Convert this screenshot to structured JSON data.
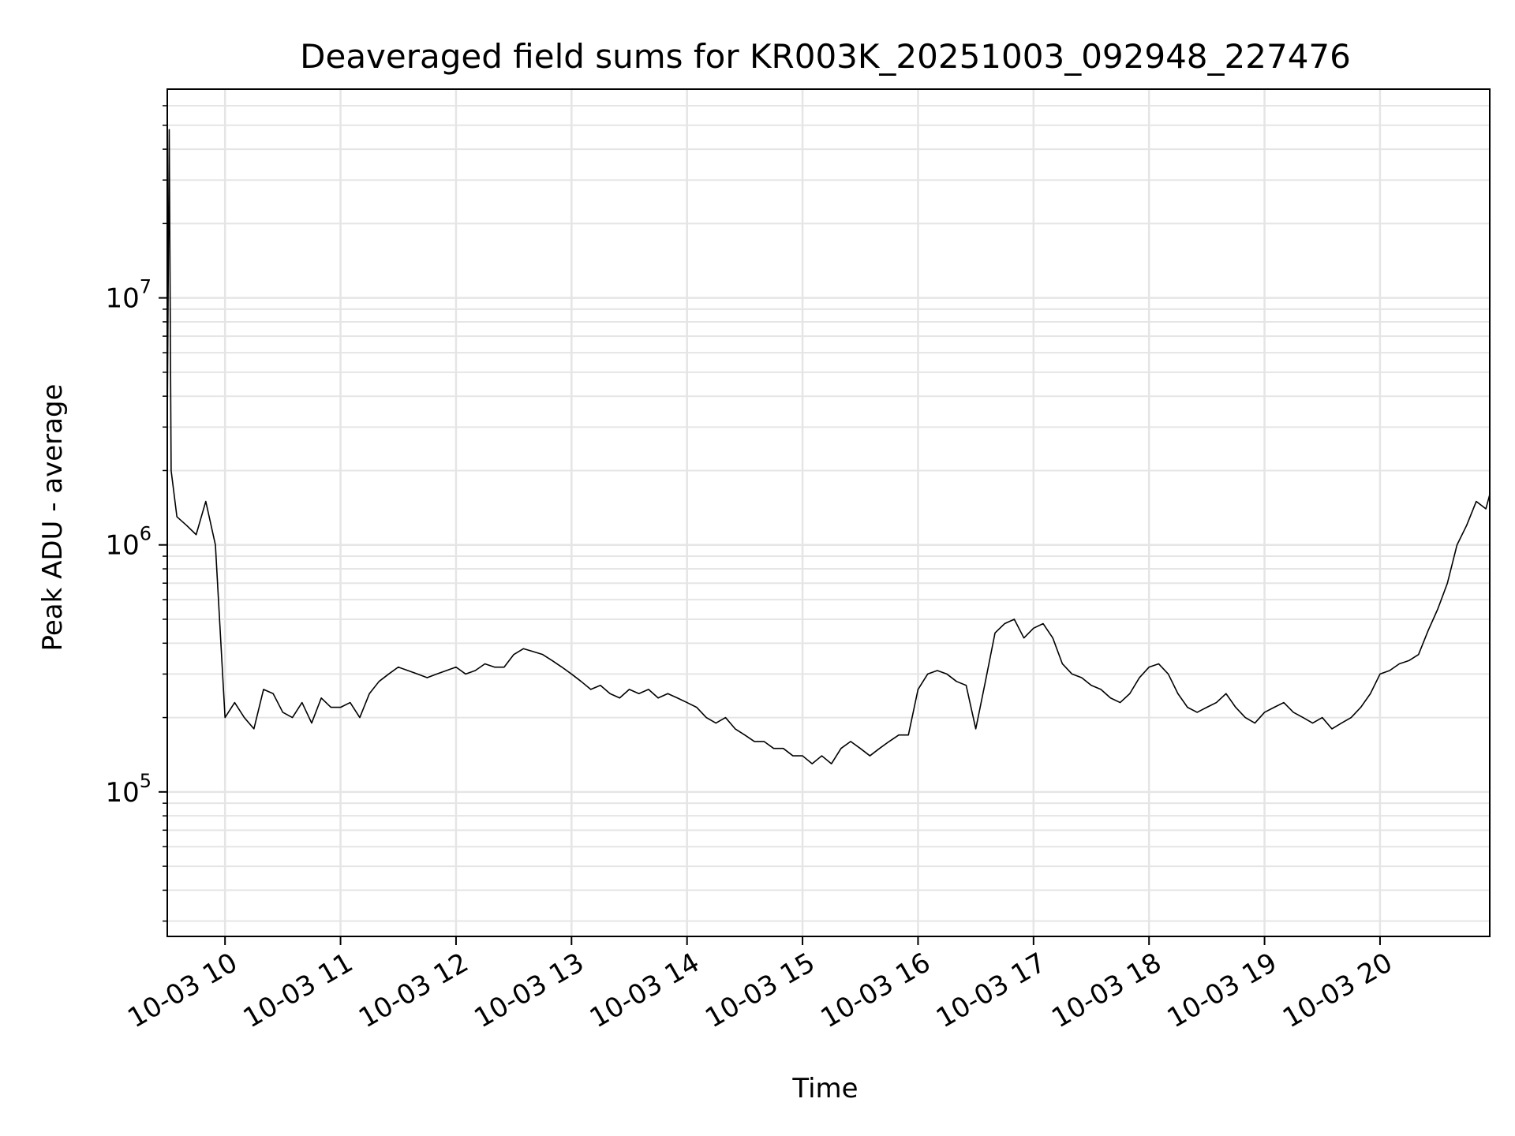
{
  "chart_data": {
    "type": "line",
    "title": "Deaveraged field sums for KR003K_20251003_092948_227476",
    "xlabel": "Time",
    "ylabel": "Peak ADU - average",
    "x_axis": "time",
    "x_range": [
      "2025-10-03 09:30",
      "2025-10-03 20:57"
    ],
    "x_ticks": [
      {
        "at": "2025-10-03 10:00",
        "label": "10-03 10"
      },
      {
        "at": "2025-10-03 11:00",
        "label": "10-03 11"
      },
      {
        "at": "2025-10-03 12:00",
        "label": "10-03 12"
      },
      {
        "at": "2025-10-03 13:00",
        "label": "10-03 13"
      },
      {
        "at": "2025-10-03 14:00",
        "label": "10-03 14"
      },
      {
        "at": "2025-10-03 15:00",
        "label": "10-03 15"
      },
      {
        "at": "2025-10-03 16:00",
        "label": "10-03 16"
      },
      {
        "at": "2025-10-03 17:00",
        "label": "10-03 17"
      },
      {
        "at": "2025-10-03 18:00",
        "label": "10-03 18"
      },
      {
        "at": "2025-10-03 19:00",
        "label": "10-03 19"
      },
      {
        "at": "2025-10-03 20:00",
        "label": "10-03 20"
      }
    ],
    "y_scale": "log",
    "ylim": [
      26000,
      70000000
    ],
    "y_ticks": [
      {
        "value": 100000,
        "base": "10",
        "exp": "5"
      },
      {
        "value": 1000000,
        "base": "10",
        "exp": "6"
      },
      {
        "value": 10000000,
        "base": "10",
        "exp": "7"
      }
    ],
    "grid": true,
    "legend": "none",
    "line_color": "#000000",
    "series": [
      {
        "x": [
          "2025-10-03 09:30",
          "2025-10-03 09:31",
          "2025-10-03 09:32",
          "2025-10-03 09:35",
          "2025-10-03 09:40",
          "2025-10-03 09:45",
          "2025-10-03 09:50",
          "2025-10-03 09:55",
          "2025-10-03 10:00",
          "2025-10-03 10:05",
          "2025-10-03 10:10",
          "2025-10-03 10:15",
          "2025-10-03 10:20",
          "2025-10-03 10:25",
          "2025-10-03 10:30",
          "2025-10-03 10:35",
          "2025-10-03 10:40",
          "2025-10-03 10:45",
          "2025-10-03 10:50",
          "2025-10-03 10:55",
          "2025-10-03 11:00",
          "2025-10-03 11:05",
          "2025-10-03 11:10",
          "2025-10-03 11:15",
          "2025-10-03 11:20",
          "2025-10-03 11:25",
          "2025-10-03 11:30",
          "2025-10-03 11:35",
          "2025-10-03 11:40",
          "2025-10-03 11:45",
          "2025-10-03 11:50",
          "2025-10-03 11:55",
          "2025-10-03 12:00",
          "2025-10-03 12:05",
          "2025-10-03 12:10",
          "2025-10-03 12:15",
          "2025-10-03 12:20",
          "2025-10-03 12:25",
          "2025-10-03 12:30",
          "2025-10-03 12:35",
          "2025-10-03 12:40",
          "2025-10-03 12:45",
          "2025-10-03 12:50",
          "2025-10-03 12:55",
          "2025-10-03 13:00",
          "2025-10-03 13:05",
          "2025-10-03 13:10",
          "2025-10-03 13:15",
          "2025-10-03 13:20",
          "2025-10-03 13:25",
          "2025-10-03 13:30",
          "2025-10-03 13:35",
          "2025-10-03 13:40",
          "2025-10-03 13:45",
          "2025-10-03 13:50",
          "2025-10-03 13:55",
          "2025-10-03 14:00",
          "2025-10-03 14:05",
          "2025-10-03 14:10",
          "2025-10-03 14:15",
          "2025-10-03 14:20",
          "2025-10-03 14:25",
          "2025-10-03 14:30",
          "2025-10-03 14:35",
          "2025-10-03 14:40",
          "2025-10-03 14:45",
          "2025-10-03 14:50",
          "2025-10-03 14:55",
          "2025-10-03 15:00",
          "2025-10-03 15:05",
          "2025-10-03 15:10",
          "2025-10-03 15:15",
          "2025-10-03 15:20",
          "2025-10-03 15:25",
          "2025-10-03 15:30",
          "2025-10-03 15:35",
          "2025-10-03 15:40",
          "2025-10-03 15:45",
          "2025-10-03 15:50",
          "2025-10-03 15:55",
          "2025-10-03 16:00",
          "2025-10-03 16:05",
          "2025-10-03 16:10",
          "2025-10-03 16:15",
          "2025-10-03 16:20",
          "2025-10-03 16:25",
          "2025-10-03 16:30",
          "2025-10-03 16:35",
          "2025-10-03 16:40",
          "2025-10-03 16:45",
          "2025-10-03 16:50",
          "2025-10-03 16:55",
          "2025-10-03 17:00",
          "2025-10-03 17:05",
          "2025-10-03 17:10",
          "2025-10-03 17:15",
          "2025-10-03 17:20",
          "2025-10-03 17:25",
          "2025-10-03 17:30",
          "2025-10-03 17:35",
          "2025-10-03 17:40",
          "2025-10-03 17:45",
          "2025-10-03 17:50",
          "2025-10-03 17:55",
          "2025-10-03 18:00",
          "2025-10-03 18:05",
          "2025-10-03 18:10",
          "2025-10-03 18:15",
          "2025-10-03 18:20",
          "2025-10-03 18:25",
          "2025-10-03 18:30",
          "2025-10-03 18:35",
          "2025-10-03 18:40",
          "2025-10-03 18:45",
          "2025-10-03 18:50",
          "2025-10-03 18:55",
          "2025-10-03 19:00",
          "2025-10-03 19:05",
          "2025-10-03 19:10",
          "2025-10-03 19:15",
          "2025-10-03 19:20",
          "2025-10-03 19:25",
          "2025-10-03 19:30",
          "2025-10-03 19:35",
          "2025-10-03 19:40",
          "2025-10-03 19:45",
          "2025-10-03 19:50",
          "2025-10-03 19:55",
          "2025-10-03 20:00",
          "2025-10-03 20:05",
          "2025-10-03 20:10",
          "2025-10-03 20:15",
          "2025-10-03 20:20",
          "2025-10-03 20:25",
          "2025-10-03 20:30",
          "2025-10-03 20:35",
          "2025-10-03 20:40",
          "2025-10-03 20:45",
          "2025-10-03 20:50",
          "2025-10-03 20:55",
          "2025-10-03 20:57"
        ],
        "y": [
          3000000,
          48000000,
          2000000,
          1300000,
          1200000,
          1100000,
          1500000,
          1000000,
          200000,
          230000,
          200000,
          180000,
          260000,
          250000,
          210000,
          200000,
          230000,
          190000,
          240000,
          220000,
          220000,
          230000,
          200000,
          250000,
          280000,
          300000,
          320000,
          310000,
          300000,
          290000,
          300000,
          310000,
          320000,
          300000,
          310000,
          330000,
          320000,
          320000,
          360000,
          380000,
          370000,
          360000,
          340000,
          320000,
          300000,
          280000,
          260000,
          270000,
          250000,
          240000,
          260000,
          250000,
          260000,
          240000,
          250000,
          240000,
          230000,
          220000,
          200000,
          190000,
          200000,
          180000,
          170000,
          160000,
          160000,
          150000,
          150000,
          140000,
          140000,
          130000,
          140000,
          130000,
          150000,
          160000,
          150000,
          140000,
          150000,
          160000,
          170000,
          170000,
          260000,
          300000,
          310000,
          300000,
          280000,
          270000,
          180000,
          280000,
          440000,
          480000,
          500000,
          420000,
          460000,
          480000,
          420000,
          330000,
          300000,
          290000,
          270000,
          260000,
          240000,
          230000,
          250000,
          290000,
          320000,
          330000,
          300000,
          250000,
          220000,
          210000,
          220000,
          230000,
          250000,
          220000,
          200000,
          190000,
          210000,
          220000,
          230000,
          210000,
          200000,
          190000,
          200000,
          180000,
          190000,
          200000,
          220000,
          250000,
          300000,
          310000,
          330000,
          340000,
          360000,
          450000,
          550000,
          700000,
          1000000,
          1200000,
          1500000,
          1400000,
          1600000
        ]
      }
    ]
  }
}
